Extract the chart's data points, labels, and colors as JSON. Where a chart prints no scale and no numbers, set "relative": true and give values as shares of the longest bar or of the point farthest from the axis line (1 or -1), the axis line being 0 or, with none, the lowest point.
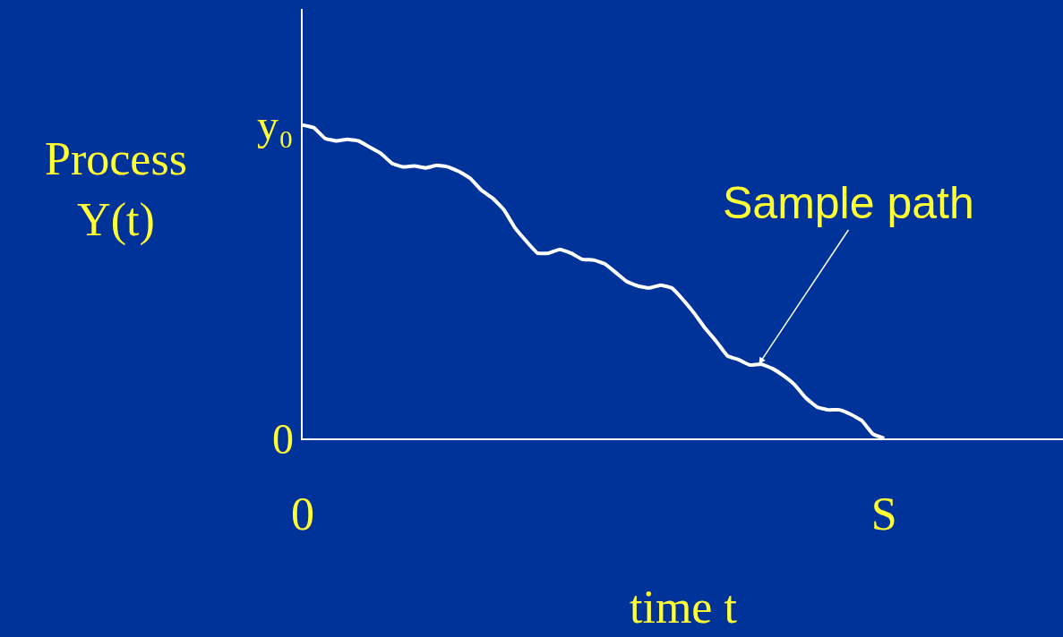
{
  "chart_data": {
    "type": "line",
    "relative": true,
    "xlabel": "time t",
    "ylabel": "Process\nY(t)",
    "categories": [
      "0",
      null,
      null,
      null,
      null,
      null,
      null,
      null,
      null,
      null,
      null,
      null,
      null,
      null,
      null,
      null,
      null,
      null,
      null,
      null,
      null,
      null,
      null,
      null,
      null,
      null,
      null,
      null,
      null,
      null,
      null,
      null,
      null,
      null,
      null,
      null,
      null,
      null,
      null,
      null,
      null,
      null,
      null,
      null,
      null,
      null,
      null,
      null,
      null,
      null,
      null,
      null,
      "S",
      null,
      null,
      null,
      null,
      null,
      null,
      null,
      null,
      null,
      null,
      null,
      null,
      null,
      null,
      null,
      null
    ],
    "series": [
      {
        "color": "#ffffff",
        "values": [
          1.0,
          0.991,
          0.957,
          0.949,
          0.954,
          0.949,
          0.929,
          0.909,
          0.877,
          0.866,
          0.869,
          0.863,
          0.871,
          0.866,
          0.851,
          0.829,
          0.791,
          0.766,
          0.729,
          0.671,
          0.629,
          0.591,
          0.591,
          0.603,
          0.591,
          0.571,
          0.569,
          0.557,
          0.529,
          0.5,
          0.486,
          0.48,
          0.489,
          0.48,
          0.443,
          0.4,
          0.351,
          0.309,
          0.263,
          0.251,
          0.234,
          0.237,
          0.223,
          0.2,
          0.171,
          0.129,
          0.1,
          0.091,
          0.091,
          0.077,
          0.057,
          0.014,
          0,
          null,
          null,
          null,
          null,
          null,
          null,
          null,
          null,
          null,
          null,
          null,
          null,
          null,
          null,
          null,
          null
        ]
      }
    ],
    "annotations": [
      "Sample path",
      {
        "text": "y₀",
        "x": "0",
        "y": 1.0
      },
      "0"
    ],
    "grid": false,
    "marker": "none",
    "line_style": "solid"
  }
}
